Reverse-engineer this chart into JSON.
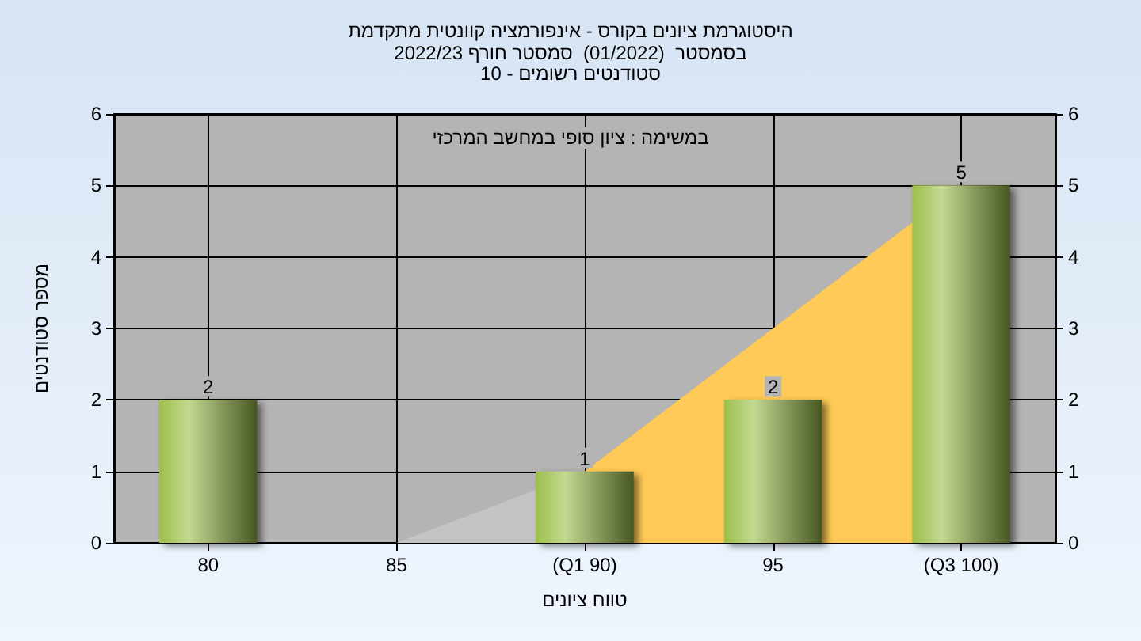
{
  "chart_data": {
    "type": "bar",
    "title": "היסטוגרמת ציונים בקורס - אינפורמציה קוונטית מתקדמת",
    "subtitle": "בסמסטר  (01/2022)  סמסטר חורף 2022/23\nסטודנטים רשומים - 10",
    "xlabel": "טווח ציונים",
    "ylabel": "מספר סטודנטים",
    "annotations": [
      "במשימה : ציון סופי במחשב המרכזי"
    ],
    "categories": [
      "80",
      "85",
      "(Q1 90)",
      "95",
      "(Q3 100)"
    ],
    "series": [
      {
        "type": "area",
        "color": "#c4c4c4",
        "values": [
          null,
          0,
          1,
          null,
          null
        ]
      },
      {
        "type": "area",
        "color": "#ffca57",
        "values": [
          null,
          null,
          1,
          3,
          5
        ]
      },
      {
        "color": "#9cc04a",
        "values": [
          2,
          0,
          1,
          2,
          5
        ],
        "value_labels": [
          "2",
          null,
          "1",
          "2",
          "5"
        ]
      }
    ],
    "ylim": [
      0,
      6
    ],
    "yticks": [
      0,
      1,
      2,
      3,
      4,
      5,
      6
    ],
    "y2lim": [
      0,
      6
    ],
    "y2ticks": [
      0,
      1,
      2,
      3,
      4,
      5,
      6
    ],
    "grid": true,
    "marker": "none"
  }
}
